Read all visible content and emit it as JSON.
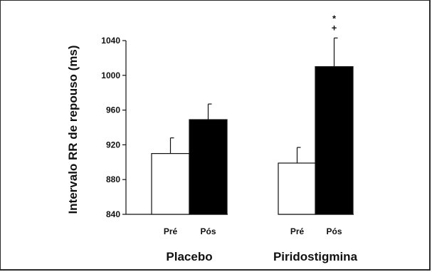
{
  "chart_data": {
    "type": "bar",
    "ylabel": "Intervalo RR de repouso (ms)",
    "ylim": [
      840,
      1040
    ],
    "yticks": [
      "840",
      "880",
      "920",
      "960",
      "1000",
      "1040"
    ],
    "groups": [
      {
        "name": "Placebo",
        "bars": [
          {
            "label": "Pré",
            "value": 910,
            "error": 18,
            "fill": "#ffffff",
            "annotations": []
          },
          {
            "label": "Pós",
            "value": 949,
            "error": 18,
            "fill": "#000000",
            "annotations": []
          }
        ]
      },
      {
        "name": "Piridostigmina",
        "bars": [
          {
            "label": "Pré",
            "value": 899,
            "error": 18,
            "fill": "#ffffff",
            "annotations": []
          },
          {
            "label": "Pós",
            "value": 1010,
            "error": 33,
            "fill": "#000000",
            "annotations": [
              "*",
              "+"
            ]
          }
        ]
      }
    ]
  }
}
